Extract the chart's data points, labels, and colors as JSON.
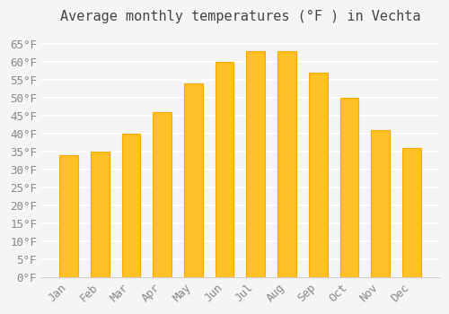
{
  "title": "Average monthly temperatures (°F ) in Vechta",
  "months": [
    "Jan",
    "Feb",
    "Mar",
    "Apr",
    "May",
    "Jun",
    "Jul",
    "Aug",
    "Sep",
    "Oct",
    "Nov",
    "Dec"
  ],
  "values": [
    34,
    35,
    40,
    46,
    54,
    60,
    63,
    63,
    57,
    50,
    41,
    36
  ],
  "bar_color": "#FFC125",
  "bar_edge_color": "#FFA500",
  "background_color": "#F5F5F5",
  "grid_color": "#FFFFFF",
  "ylim": [
    0,
    68
  ],
  "yticks": [
    0,
    5,
    10,
    15,
    20,
    25,
    30,
    35,
    40,
    45,
    50,
    55,
    60,
    65
  ],
  "ylabel_suffix": "°F",
  "title_fontsize": 11,
  "tick_fontsize": 9,
  "font_family": "monospace"
}
